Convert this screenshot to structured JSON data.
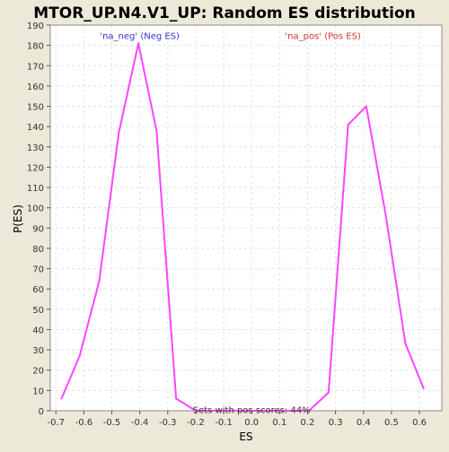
{
  "chart_data": {
    "type": "line",
    "title": "MTOR_UP.N4.V1_UP: Random ES distribution",
    "xlabel": "ES",
    "ylabel": "P(ES)",
    "xlim": [
      -0.72,
      0.68
    ],
    "ylim": [
      0,
      190
    ],
    "xticks": [
      -0.7,
      -0.6,
      -0.5,
      -0.4,
      -0.3,
      -0.2,
      -0.1,
      0.0,
      0.1,
      0.2,
      0.3,
      0.4,
      0.5,
      0.6
    ],
    "xtick_labels": [
      "-0.7",
      "-0.6",
      "-0.5",
      "-0.4",
      "-0.3",
      "-0.2",
      "-0.1",
      "0.0",
      "0.1",
      "0.2",
      "0.3",
      "0.4",
      "0.5",
      "0.6"
    ],
    "yticks": [
      0,
      10,
      20,
      30,
      40,
      50,
      60,
      70,
      80,
      90,
      100,
      110,
      120,
      130,
      140,
      150,
      160,
      170,
      180,
      190
    ],
    "grid": true,
    "line_color": "#FF44FF",
    "series": [
      {
        "x": [
          -0.68,
          -0.615,
          -0.545,
          -0.475,
          -0.405,
          -0.34,
          -0.27,
          -0.2,
          -0.13,
          -0.065,
          0.0,
          0.07,
          0.14,
          0.205,
          0.275,
          0.345,
          0.41,
          0.48,
          0.55,
          0.615
        ],
        "y": [
          6,
          27,
          64,
          137,
          181,
          138,
          6,
          0,
          0,
          0,
          0,
          0,
          0,
          0,
          9,
          141,
          150,
          96,
          33,
          11
        ]
      }
    ],
    "annotations": [
      {
        "text": "'na_neg' (Neg ES)",
        "x": -0.4,
        "y": 185,
        "color": "#3333CC"
      },
      {
        "text": "'na_pos' (Pos ES)",
        "x": 0.255,
        "y": 185,
        "color": "#CC3333"
      },
      {
        "text": "Sets with pos scores: 44%",
        "x": 0.0,
        "y": 0.7,
        "color": "#333333"
      }
    ]
  }
}
